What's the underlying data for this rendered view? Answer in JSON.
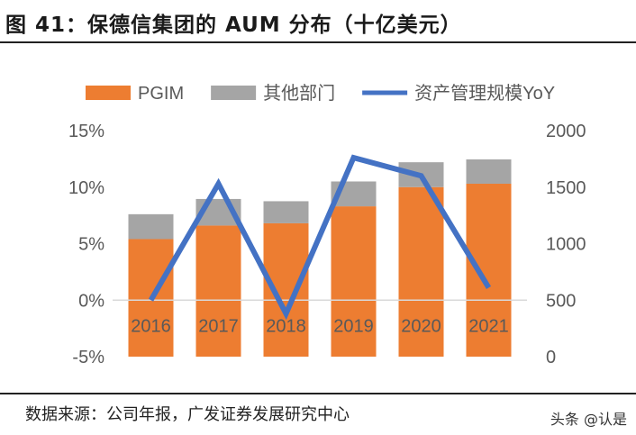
{
  "title": "图 41：保德信集团的 AUM 分布（十亿美元）",
  "source": "数据来源：公司年报，广发证券发展研究中心",
  "watermark": "头条 @认是",
  "chart_data": {
    "type": "bar",
    "stacked": true,
    "categories": [
      "2016",
      "2017",
      "2018",
      "2019",
      "2020",
      "2021"
    ],
    "series": [
      {
        "name": "PGIM",
        "type": "bar",
        "axis": "right",
        "color": "#ED7D31",
        "values": [
          1040,
          1160,
          1180,
          1330,
          1500,
          1530
        ]
      },
      {
        "name": "其他部门",
        "type": "bar",
        "axis": "right",
        "color": "#A5A5A5",
        "values": [
          220,
          235,
          195,
          220,
          220,
          215
        ]
      },
      {
        "name": "资产管理规模YoY",
        "type": "line",
        "axis": "left",
        "color": "#4472C4",
        "values": [
          0.0,
          10.3,
          -1.2,
          12.6,
          11.0,
          1.1
        ]
      }
    ],
    "left_axis": {
      "range": [
        -5,
        15
      ],
      "ticks": [
        "-5%",
        "0%",
        "5%",
        "10%",
        "15%"
      ]
    },
    "right_axis": {
      "range": [
        0,
        2000
      ],
      "ticks": [
        "0",
        "500",
        "1000",
        "1500",
        "2000"
      ]
    },
    "legend": "top",
    "grid": false
  }
}
